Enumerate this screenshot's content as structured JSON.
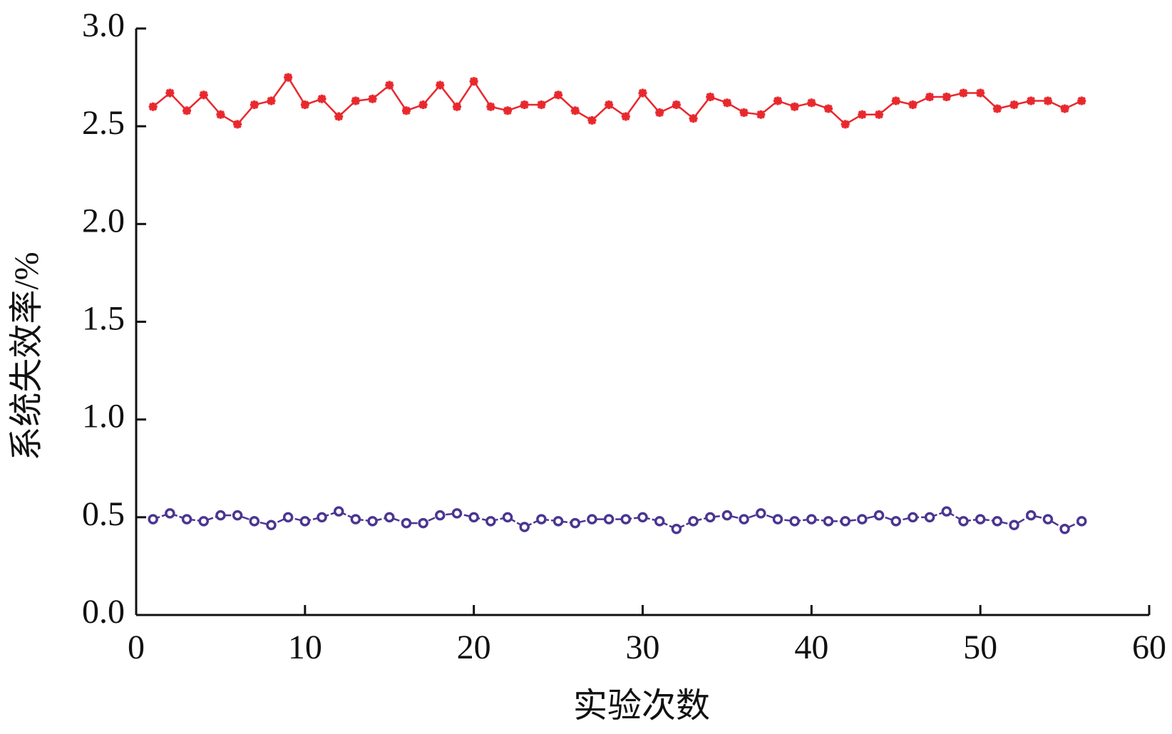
{
  "chart_data": {
    "type": "line",
    "xlabel": "实验次数",
    "ylabel": "系统失效率/%",
    "x": [
      1,
      2,
      3,
      4,
      5,
      6,
      7,
      8,
      9,
      10,
      11,
      12,
      13,
      14,
      15,
      16,
      17,
      18,
      19,
      20,
      21,
      22,
      23,
      24,
      25,
      26,
      27,
      28,
      29,
      30,
      31,
      32,
      33,
      34,
      35,
      36,
      37,
      38,
      39,
      40,
      41,
      42,
      43,
      44,
      45,
      46,
      47,
      48,
      49,
      50,
      51,
      52,
      53,
      54,
      55,
      56
    ],
    "series": [
      {
        "color": "#e8282d",
        "marker": "star",
        "values": [
          2.6,
          2.67,
          2.58,
          2.66,
          2.56,
          2.51,
          2.61,
          2.63,
          2.75,
          2.61,
          2.64,
          2.55,
          2.63,
          2.64,
          2.71,
          2.58,
          2.61,
          2.71,
          2.6,
          2.73,
          2.6,
          2.58,
          2.61,
          2.61,
          2.66,
          2.58,
          2.53,
          2.61,
          2.55,
          2.67,
          2.57,
          2.61,
          2.54,
          2.65,
          2.62,
          2.57,
          2.56,
          2.63,
          2.6,
          2.62,
          2.59,
          2.51,
          2.56,
          2.56,
          2.63,
          2.61,
          2.65,
          2.65,
          2.67,
          2.67,
          2.59,
          2.61,
          2.63,
          2.63,
          2.59,
          2.63
        ]
      },
      {
        "color": "#4b3590",
        "marker": "circle",
        "values": [
          0.49,
          0.52,
          0.49,
          0.48,
          0.51,
          0.51,
          0.48,
          0.46,
          0.5,
          0.48,
          0.5,
          0.53,
          0.49,
          0.48,
          0.5,
          0.47,
          0.47,
          0.51,
          0.52,
          0.5,
          0.48,
          0.5,
          0.45,
          0.49,
          0.48,
          0.47,
          0.49,
          0.49,
          0.49,
          0.5,
          0.48,
          0.44,
          0.48,
          0.5,
          0.51,
          0.49,
          0.52,
          0.49,
          0.48,
          0.49,
          0.48,
          0.48,
          0.49,
          0.51,
          0.48,
          0.5,
          0.5,
          0.53,
          0.48,
          0.49,
          0.48,
          0.46,
          0.51,
          0.49,
          0.44,
          0.48
        ]
      }
    ],
    "xlim": [
      0,
      60
    ],
    "xticks": [
      0,
      10,
      20,
      30,
      40,
      50,
      60
    ],
    "ylim": [
      0,
      3
    ],
    "yticks": [
      {
        "value": 0,
        "label": "0.0"
      },
      0.5,
      {
        "value": 1,
        "label": "1.0"
      },
      1.5,
      {
        "value": 2,
        "label": "2.0"
      },
      2.5,
      {
        "value": 3,
        "label": "3.0"
      }
    ]
  }
}
